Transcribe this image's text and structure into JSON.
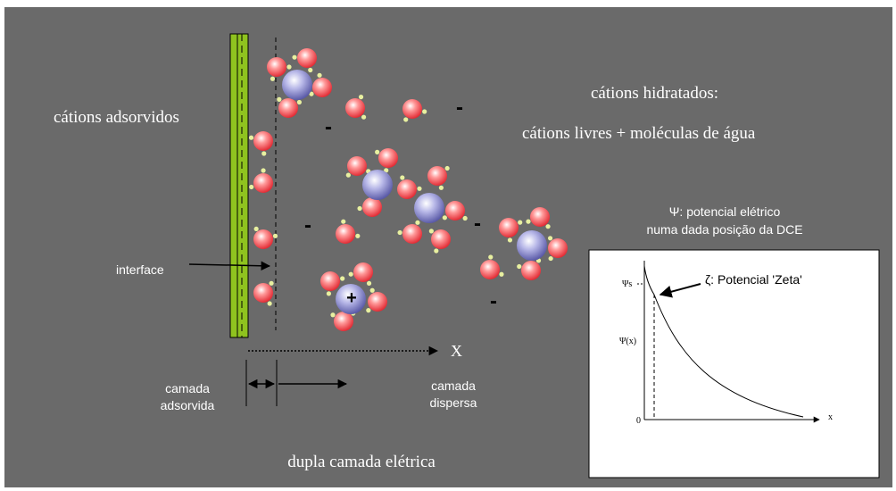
{
  "labels": {
    "adsorbed_cations": "cátions adsorvidos",
    "hydrated_title": "cátions hidratados:",
    "hydrated_desc": "cátions livres + moléculas de água",
    "psi_line1": "Ψ: potencial elétrico",
    "psi_line2": "numa dada posição da DCE",
    "interface": "interface",
    "x_axis": "X",
    "adsorbed_layer": [
      "camada",
      "adsorvida"
    ],
    "dispersed_layer": [
      "camada",
      "dispersa"
    ],
    "double_layer": "dupla camada elétrica"
  },
  "charges": [
    "-",
    "-",
    "-",
    "-",
    "-",
    "+"
  ],
  "inset": {
    "zeta": "ζ: Potencial 'Zeta'",
    "psi_s": "Ψs",
    "psi_x": "Ψ(x)",
    "origin": "0",
    "x": "x"
  }
}
